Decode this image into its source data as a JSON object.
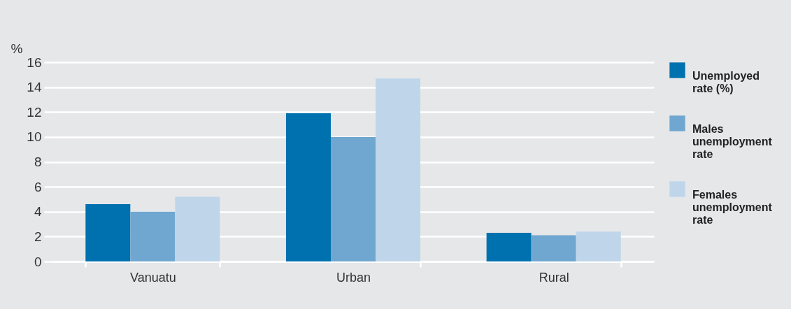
{
  "chart_data": {
    "type": "bar",
    "ylabel": "%",
    "categories": [
      "Vanuatu",
      "Urban",
      "Rural"
    ],
    "series": [
      {
        "name": "Unemployed rate (%)",
        "color": "#0071af",
        "values": [
          4.6,
          11.9,
          2.3
        ]
      },
      {
        "name": "Males unemployment rate",
        "color": "#6fa7d0",
        "values": [
          4.0,
          10.0,
          2.1
        ]
      },
      {
        "name": "Females unemployment rate",
        "color": "#bfd6ea",
        "values": [
          5.2,
          14.7,
          2.4
        ]
      }
    ],
    "ylim": [
      0,
      16
    ],
    "yticks": [
      0,
      2,
      4,
      6,
      8,
      10,
      12,
      14,
      16
    ],
    "grid": "y",
    "legend": "right"
  }
}
